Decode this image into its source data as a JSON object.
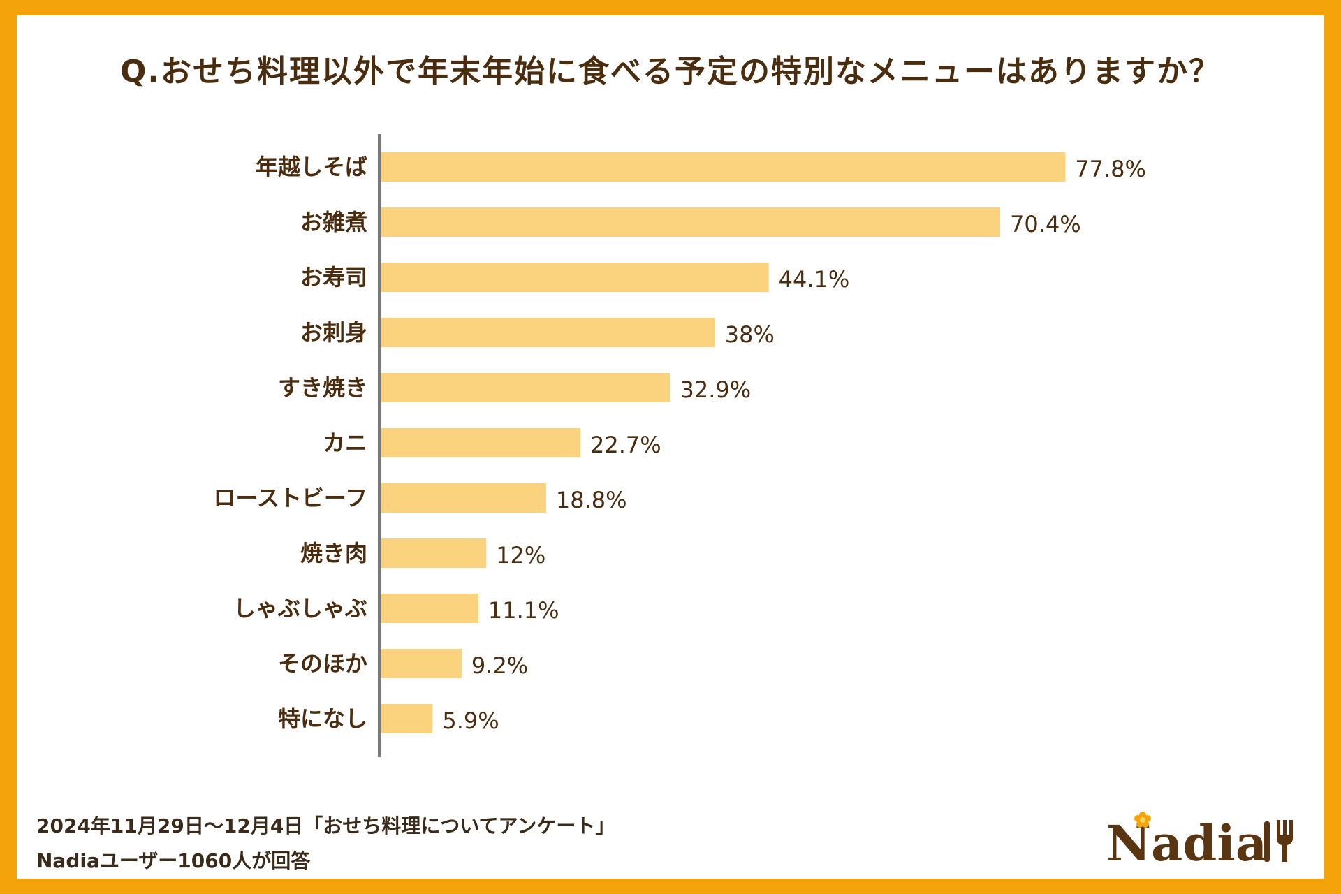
{
  "chart_data": {
    "type": "bar",
    "orientation": "horizontal",
    "title": "Q.おせち料理以外で年末年始に食べる予定の特別なメニューはありますか？",
    "categories": [
      "年越しそば",
      "お雑煮",
      "お寿司",
      "お刺身",
      "すき焼き",
      "カニ",
      "ローストビーフ",
      "焼き肉",
      "しゃぶしゃぶ",
      "そのほか",
      "特になし"
    ],
    "values": [
      77.8,
      70.4,
      44.1,
      38,
      32.9,
      22.7,
      18.8,
      12,
      11.1,
      9.2,
      5.9
    ],
    "value_labels": [
      "77.8%",
      "70.4%",
      "44.1%",
      "38%",
      "32.9%",
      "22.7%",
      "18.8%",
      "12%",
      "11.1%",
      "9.2%",
      "5.9%"
    ],
    "xlim": [
      0,
      100
    ],
    "xlabel": "",
    "ylabel": "",
    "grid": false,
    "bar_color": "#FBD27E",
    "text_color": "#4A2C0E"
  },
  "footer": {
    "line1": "2024年11月29日〜12月4日「おせち料理についてアンケート」",
    "line2": "Nadiaユーザー1060人が回答"
  },
  "logo": {
    "text": "Nadia",
    "icon": "fork-knife-icon"
  },
  "colors": {
    "frame": "#F5A30A",
    "background": "#FFFFFF",
    "axis": "#7A7A7A"
  }
}
